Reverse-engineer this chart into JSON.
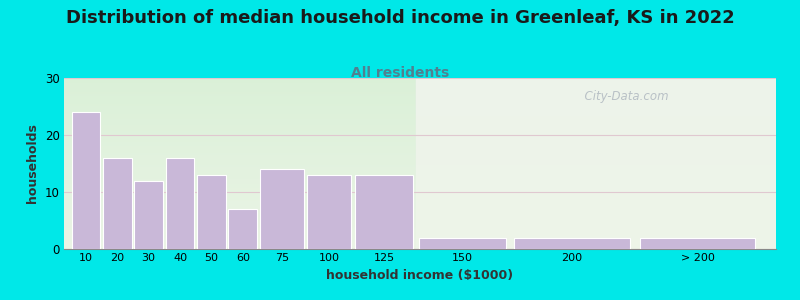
{
  "title": "Distribution of median household income in Greenleaf, KS in 2022",
  "subtitle": "All residents",
  "xlabel": "household income ($1000)",
  "ylabel": "households",
  "bar_labels": [
    "10",
    "20",
    "30",
    "40",
    "50",
    "60",
    "75",
    "100",
    "125",
    "150",
    "200",
    "> 200"
  ],
  "bar_values": [
    24,
    16,
    12,
    16,
    13,
    7,
    14,
    13,
    13,
    2,
    2,
    2
  ],
  "bar_color": "#c9b8d8",
  "bar_edge_color": "#ffffff",
  "ylim": [
    0,
    30
  ],
  "yticks": [
    0,
    10,
    20,
    30
  ],
  "bg_outer": "#00e8e8",
  "plot_bg_left_top": "#dff0e0",
  "plot_bg_right_top": "#f8f5fa",
  "title_fontsize": 13,
  "subtitle_fontsize": 10,
  "subtitle_color": "#508090",
  "axis_label_fontsize": 9,
  "watermark": "  City-Data.com"
}
